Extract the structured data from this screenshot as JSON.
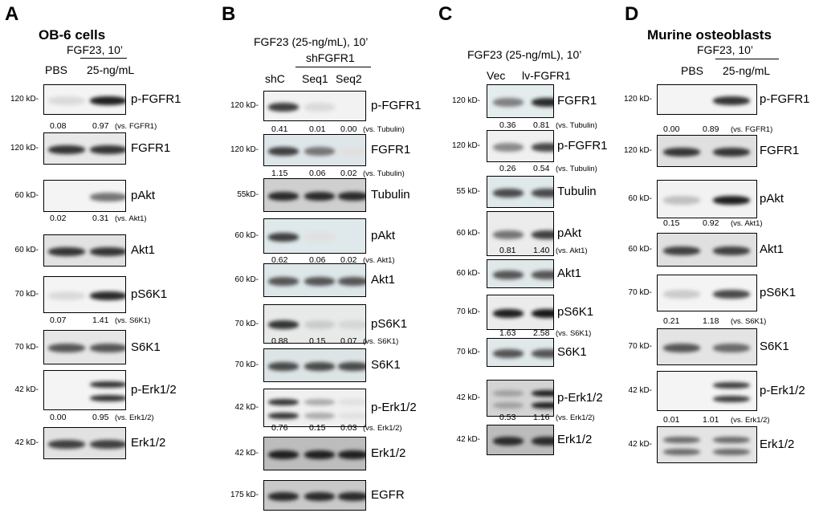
{
  "panels": [
    {
      "letter": "A",
      "title": "OB-6 cells",
      "condition": "FGF23, 10’",
      "lanes": [
        "PBS",
        "25-ng/mL"
      ],
      "blots": [
        {
          "mw": "120 kD-",
          "label": "p-FGFR1",
          "bg": "#f4f4f4",
          "intensity": [
            0.08,
            0.95
          ],
          "quant": {
            "values": [
              "0.08",
              "0.97"
            ],
            "ref": "(vs. FGFR1)"
          }
        },
        {
          "mw": "120 kD-",
          "label": "FGFR1",
          "bg": "#e8e8e8",
          "intensity": [
            0.85,
            0.85
          ],
          "quant": null
        },
        {
          "mw": "60 kD-",
          "label": "pAkt",
          "bg": "#f4f4f4",
          "intensity": [
            0.02,
            0.55
          ],
          "quant": {
            "values": [
              "0.02",
              "0.31"
            ],
            "ref": "(vs. Akt1)"
          }
        },
        {
          "mw": "60 kD-",
          "label": "Akt1",
          "bg": "#e2e2e2",
          "intensity": [
            0.85,
            0.85
          ],
          "quant": null
        },
        {
          "mw": "70 kD-",
          "label": "pS6K1",
          "bg": "#f4f4f4",
          "intensity": [
            0.08,
            0.9
          ],
          "quant": {
            "values": [
              "0.07",
              "1.41"
            ],
            "ref": "(vs. S6K1)"
          }
        },
        {
          "mw": "70 kD-",
          "label": "S6K1",
          "bg": "#e6e6e6",
          "intensity": [
            0.7,
            0.7
          ],
          "quant": null
        },
        {
          "mw": "42 kD-",
          "label": "p-Erk1/2",
          "bg": "#f4f4f4",
          "intensity": [
            0.0,
            0.85
          ],
          "quant": {
            "values": [
              "0.00",
              "0.95"
            ],
            "ref": "(vs. Erk1/2)"
          }
        },
        {
          "mw": "42 kD-",
          "label": "Erk1/2",
          "bg": "#e2e2e2",
          "intensity": [
            0.8,
            0.8
          ],
          "quant": null
        }
      ]
    },
    {
      "letter": "B",
      "condition": "FGF23 (25-ng/mL), 10’",
      "group_label": "shFGFR1",
      "lanes": [
        "shC",
        "Seq1",
        "Seq2"
      ],
      "blots": [
        {
          "mw": "120 kD-",
          "label": "p-FGFR1",
          "bg": "#f2f2f2",
          "intensity": [
            0.8,
            0.08,
            0.0
          ],
          "quant": {
            "values": [
              "0.41",
              "0.01",
              "0.00"
            ],
            "ref": "(vs. Tubulin)"
          }
        },
        {
          "mw": "120 kD-",
          "label": "FGFR1",
          "bg": "#dfe6ea",
          "intensity": [
            0.8,
            0.55,
            0.05
          ],
          "quant": {
            "values": [
              "1.15",
              "0.06",
              "0.02"
            ],
            "ref": "(vs. Tubulin)"
          }
        },
        {
          "mw": "55kD-",
          "label": "Tubulin",
          "bg": "#cfcfcf",
          "intensity": [
            0.9,
            0.9,
            0.9
          ],
          "quant": null
        },
        {
          "mw": "60 kD-",
          "label": "pAkt",
          "bg": "#dfe8ea",
          "intensity": [
            0.8,
            0.05,
            0.02
          ],
          "quant": {
            "values": [
              "0.62",
              "0.06",
              "0.02"
            ],
            "ref": "(vs. Akt1)"
          }
        },
        {
          "mw": "60 kD-",
          "label": "Akt1",
          "bg": "#dde6e8",
          "intensity": [
            0.7,
            0.7,
            0.7
          ],
          "quant": null
        },
        {
          "mw": "70 kD-",
          "label": "pS6K1",
          "bg": "#e8eaea",
          "intensity": [
            0.85,
            0.15,
            0.1
          ],
          "quant": {
            "values": [
              "0.88",
              "0.15",
              "0.07"
            ],
            "ref": "(vs. S6K1)"
          }
        },
        {
          "mw": "70 kD-",
          "label": "S6K1",
          "bg": "#dce4e6",
          "intensity": [
            0.75,
            0.75,
            0.75
          ],
          "quant": null
        },
        {
          "mw": "42 kD-",
          "label": "p-Erk1/2",
          "bg": "#f0f0f0",
          "intensity": [
            0.85,
            0.3,
            0.05
          ],
          "quant": {
            "values": [
              "0.76",
              "0.15",
              "0.03"
            ],
            "ref": "(vs. Erk1/2)"
          }
        },
        {
          "mw": "42 kD-",
          "label": "Erk1/2",
          "bg": "#bdbdbd",
          "intensity": [
            0.95,
            0.95,
            0.95
          ],
          "quant": null
        },
        {
          "mw": "175 kD-",
          "label": "EGFR",
          "bg": "#c9c9c9",
          "intensity": [
            0.9,
            0.9,
            0.9
          ],
          "quant": null
        }
      ]
    },
    {
      "letter": "C",
      "condition": "FGF23 (25-ng/mL), 10’",
      "lanes": [
        "Vec",
        "lv-FGFR1"
      ],
      "blots": [
        {
          "mw": "120 kD-",
          "label": "FGFR1",
          "bg": "#e4ecee",
          "intensity": [
            0.5,
            0.9
          ],
          "quant": {
            "values": [
              "0.36",
              "0.81"
            ],
            "ref": "(vs. Tubulin)"
          }
        },
        {
          "mw": "120 kD-",
          "label": "p-FGFR1",
          "bg": "#f0f0f0",
          "intensity": [
            0.45,
            0.75
          ],
          "quant": {
            "values": [
              "0.26",
              "0.54"
            ],
            "ref": "(vs. Tubulin)"
          }
        },
        {
          "mw": "55 kD-",
          "label": "Tubulin",
          "bg": "#dfe8ea",
          "intensity": [
            0.75,
            0.75
          ],
          "quant": null
        },
        {
          "mw": "60 kD-",
          "label": "pAkt",
          "bg": "#ececec",
          "intensity": [
            0.55,
            0.8
          ],
          "quant": {
            "values": [
              "0.81",
              "1.40"
            ],
            "ref": "(vs. Akt1)"
          }
        },
        {
          "mw": "60 kD-",
          "label": "Akt1",
          "bg": "#e0e8ea",
          "intensity": [
            0.7,
            0.7
          ],
          "quant": null
        },
        {
          "mw": "70 kD-",
          "label": "pS6K1",
          "bg": "#ececec",
          "intensity": [
            0.95,
            0.98
          ],
          "quant": {
            "values": [
              "1.63",
              "2.58"
            ],
            "ref": "(vs. S6K1)"
          }
        },
        {
          "mw": "70 kD-",
          "label": "S6K1",
          "bg": "#e0e8ea",
          "intensity": [
            0.7,
            0.7
          ],
          "quant": null
        },
        {
          "mw": "42 kD-",
          "label": "p-Erk1/2",
          "bg": "#d4d4d4",
          "intensity": [
            0.35,
            0.95
          ],
          "quant": {
            "values": [
              "0.53",
              "1.16"
            ],
            "ref": "(vs. Erk1/2)"
          }
        },
        {
          "mw": "42 kD-",
          "label": "Erk1/2",
          "bg": "#bcbcbc",
          "intensity": [
            0.9,
            0.9
          ],
          "quant": null
        }
      ]
    },
    {
      "letter": "D",
      "title": "Murine osteoblasts",
      "condition": "FGF23, 10’",
      "lanes": [
        "PBS",
        "25-ng/mL"
      ],
      "blots": [
        {
          "mw": "120 kD-",
          "label": "p-FGFR1",
          "bg": "#f4f4f4",
          "intensity": [
            0.0,
            0.85
          ],
          "quant": {
            "values": [
              "0.00",
              "0.89"
            ],
            "ref": "(vs. FGFR1)"
          }
        },
        {
          "mw": "120 kD-",
          "label": "FGFR1",
          "bg": "#e0e0e0",
          "intensity": [
            0.85,
            0.85
          ],
          "quant": null
        },
        {
          "mw": "60 kD-",
          "label": "pAkt",
          "bg": "#f2f2f2",
          "intensity": [
            0.2,
            0.95
          ],
          "quant": {
            "values": [
              "0.15",
              "0.92"
            ],
            "ref": "(vs. Akt1)"
          }
        },
        {
          "mw": "60 kD-",
          "label": "Akt1",
          "bg": "#e0e0e0",
          "intensity": [
            0.8,
            0.8
          ],
          "quant": null
        },
        {
          "mw": "70 kD-",
          "label": "pS6K1",
          "bg": "#f4f4f4",
          "intensity": [
            0.15,
            0.75
          ],
          "quant": {
            "values": [
              "0.21",
              "1.18"
            ],
            "ref": "(vs. S6K1)"
          }
        },
        {
          "mw": "70 kD-",
          "label": "S6K1",
          "bg": "#e4e4e4",
          "intensity": [
            0.7,
            0.6
          ],
          "quant": null
        },
        {
          "mw": "42 kD-",
          "label": "p-Erk1/2",
          "bg": "#f4f4f4",
          "intensity": [
            0.02,
            0.8
          ],
          "quant": {
            "values": [
              "0.01",
              "1.01"
            ],
            "ref": "(vs. Erk1/2)"
          }
        },
        {
          "mw": "42 kD-",
          "label": "Erk1/2",
          "bg": "#e4e4e4",
          "intensity": [
            0.6,
            0.6
          ],
          "quant": null
        }
      ]
    }
  ]
}
